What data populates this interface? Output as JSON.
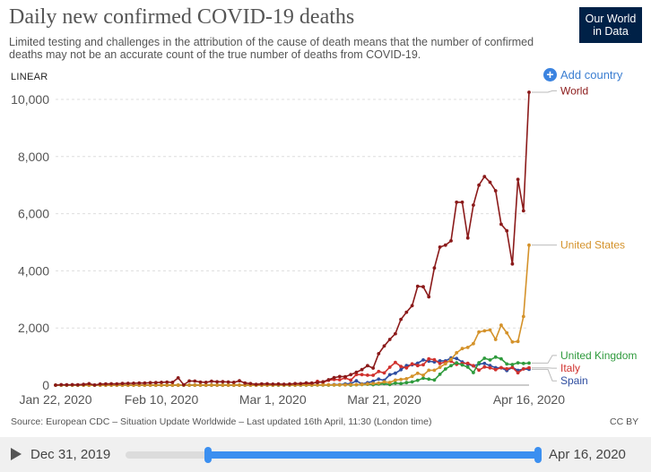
{
  "header": {
    "title": "Daily new confirmed COVID-19 deaths",
    "subtitle": "Limited testing and challenges in the attribution of the cause of death means that the number of confirmed deaths may not be an accurate count of the true number of deaths from COVID-19.",
    "logo_line1": "Our World",
    "logo_line2": "in Data",
    "scale": "LINEAR",
    "add_country": "Add country"
  },
  "footer": {
    "source": "Source: European CDC – Situation Update Worldwide – Last updated 16th April, 11:30 (London time)",
    "license": "CC BY"
  },
  "timeline": {
    "start_label": "Dec 31, 2019",
    "end_label": "Apr 16, 2020",
    "range_start_fraction": 0.2,
    "range_end_fraction": 1.0
  },
  "chart_data": {
    "type": "line",
    "title": "Daily new confirmed COVID-19 deaths",
    "x_start": "2020-01-22",
    "x_end": "2020-04-16",
    "x_ticks": [
      {
        "date": "2020-01-22",
        "label": "Jan 22, 2020"
      },
      {
        "date": "2020-02-10",
        "label": "Feb 10, 2020"
      },
      {
        "date": "2020-03-01",
        "label": "Mar 1, 2020"
      },
      {
        "date": "2020-03-21",
        "label": "Mar 21, 2020"
      },
      {
        "date": "2020-04-16",
        "label": "Apr 16, 2020"
      }
    ],
    "ylim": [
      0,
      10500
    ],
    "y_ticks": [
      {
        "value": 0,
        "label": "0"
      },
      {
        "value": 2000,
        "label": "2,000"
      },
      {
        "value": 4000,
        "label": "4,000"
      },
      {
        "value": 6000,
        "label": "6,000"
      },
      {
        "value": 8000,
        "label": "8,000"
      },
      {
        "value": 10000,
        "label": "10,000"
      }
    ],
    "grid": "horizontal-dashed",
    "legend": "line-end-labels",
    "dates": [
      "2020-01-22",
      "2020-01-23",
      "2020-01-24",
      "2020-01-25",
      "2020-01-26",
      "2020-01-27",
      "2020-01-28",
      "2020-01-29",
      "2020-01-30",
      "2020-01-31",
      "2020-02-01",
      "2020-02-02",
      "2020-02-03",
      "2020-02-04",
      "2020-02-05",
      "2020-02-06",
      "2020-02-07",
      "2020-02-08",
      "2020-02-09",
      "2020-02-10",
      "2020-02-11",
      "2020-02-12",
      "2020-02-13",
      "2020-02-14",
      "2020-02-15",
      "2020-02-16",
      "2020-02-17",
      "2020-02-18",
      "2020-02-19",
      "2020-02-20",
      "2020-02-21",
      "2020-02-22",
      "2020-02-23",
      "2020-02-24",
      "2020-02-25",
      "2020-02-26",
      "2020-02-27",
      "2020-02-28",
      "2020-02-29",
      "2020-03-01",
      "2020-03-02",
      "2020-03-03",
      "2020-03-04",
      "2020-03-05",
      "2020-03-06",
      "2020-03-07",
      "2020-03-08",
      "2020-03-09",
      "2020-03-10",
      "2020-03-11",
      "2020-03-12",
      "2020-03-13",
      "2020-03-14",
      "2020-03-15",
      "2020-03-16",
      "2020-03-17",
      "2020-03-18",
      "2020-03-19",
      "2020-03-20",
      "2020-03-21",
      "2020-03-22",
      "2020-03-23",
      "2020-03-24",
      "2020-03-25",
      "2020-03-26",
      "2020-03-27",
      "2020-03-28",
      "2020-03-29",
      "2020-03-30",
      "2020-03-31",
      "2020-04-01",
      "2020-04-02",
      "2020-04-03",
      "2020-04-04",
      "2020-04-05",
      "2020-04-06",
      "2020-04-07",
      "2020-04-08",
      "2020-04-09",
      "2020-04-10",
      "2020-04-11",
      "2020-04-12",
      "2020-04-13",
      "2020-04-14",
      "2020-04-15",
      "2020-04-16"
    ],
    "series": [
      {
        "name": "World",
        "color": "#8b1a1a",
        "values": [
          0,
          17,
          8,
          16,
          14,
          26,
          49,
          2,
          38,
          42,
          46,
          45,
          57,
          64,
          65,
          73,
          73,
          86,
          89,
          97,
          108,
          97,
          254,
          13,
          143,
          142,
          105,
          98,
          136,
          115,
          118,
          109,
          97,
          150,
          71,
          52,
          29,
          44,
          47,
          35,
          42,
          31,
          38,
          52,
          54,
          78,
          71,
          91,
          117,
          187,
          260,
          302,
          295,
          366,
          450,
          542,
          680,
          595,
          1100,
          1370,
          1600,
          1800,
          2300,
          2550,
          2780,
          3460,
          3440,
          3090,
          4100,
          4830,
          4900,
          5050,
          6400,
          6400,
          5150,
          6300,
          7000,
          7300,
          7100,
          6800,
          5630,
          5400,
          4240,
          7200,
          6100,
          10250
        ],
        "end_label_y": 10300
      },
      {
        "name": "United States",
        "color": "#d4922a",
        "values": [
          0,
          0,
          0,
          0,
          0,
          0,
          0,
          0,
          0,
          0,
          0,
          0,
          0,
          0,
          0,
          0,
          0,
          0,
          0,
          0,
          0,
          0,
          0,
          0,
          0,
          0,
          0,
          0,
          0,
          0,
          0,
          0,
          0,
          0,
          0,
          0,
          0,
          0,
          1,
          0,
          5,
          1,
          4,
          1,
          2,
          3,
          4,
          5,
          5,
          8,
          5,
          9,
          10,
          17,
          16,
          24,
          41,
          53,
          70,
          112,
          95,
          175,
          200,
          223,
          308,
          415,
          345,
          520,
          520,
          625,
          750,
          900,
          1130,
          1280,
          1320,
          1450,
          1860,
          1900,
          1930,
          1600,
          2100,
          1830,
          1510,
          1530,
          2400,
          4900
        ],
        "end_label_y": 4900
      },
      {
        "name": "United Kingdom",
        "color": "#2e9a3c",
        "values": [
          0,
          0,
          0,
          0,
          0,
          0,
          0,
          0,
          0,
          0,
          0,
          0,
          0,
          0,
          0,
          0,
          0,
          0,
          0,
          0,
          0,
          0,
          0,
          0,
          0,
          0,
          0,
          0,
          0,
          0,
          0,
          0,
          0,
          0,
          0,
          0,
          0,
          0,
          0,
          0,
          0,
          0,
          0,
          1,
          1,
          0,
          1,
          2,
          2,
          0,
          2,
          2,
          11,
          0,
          14,
          20,
          28,
          16,
          35,
          53,
          21,
          72,
          54,
          87,
          113,
          168,
          240,
          210,
          180,
          380,
          565,
          680,
          780,
          705,
          630,
          440,
          785,
          940,
          880,
          980,
          920,
          740,
          720,
          780,
          760,
          770
        ],
        "end_label_y": 1040
      },
      {
        "name": "Italy",
        "color": "#d0312d",
        "values": [
          0,
          0,
          0,
          0,
          0,
          0,
          0,
          0,
          0,
          0,
          0,
          0,
          0,
          0,
          0,
          0,
          0,
          0,
          0,
          0,
          0,
          0,
          0,
          0,
          0,
          0,
          0,
          0,
          0,
          0,
          0,
          0,
          0,
          0,
          0,
          0,
          0,
          2,
          3,
          6,
          5,
          18,
          27,
          28,
          41,
          49,
          36,
          133,
          97,
          168,
          196,
          189,
          252,
          174,
          370,
          368,
          349,
          345,
          475,
          427,
          627,
          793,
          651,
          601,
          743,
          683,
          712,
          919,
          889,
          756,
          812,
          837,
          727,
          760,
          766,
          681,
          525,
          636,
          604,
          542,
          610,
          570,
          619,
          431,
          566,
          604
        ],
        "end_label_y": 590
      },
      {
        "name": "Spain",
        "color": "#2f4ea0",
        "values": [
          0,
          0,
          0,
          0,
          0,
          0,
          0,
          0,
          0,
          0,
          0,
          0,
          0,
          0,
          0,
          0,
          0,
          0,
          0,
          0,
          0,
          0,
          0,
          0,
          0,
          0,
          0,
          0,
          0,
          0,
          0,
          0,
          0,
          0,
          0,
          0,
          0,
          0,
          0,
          0,
          0,
          0,
          0,
          0,
          1,
          2,
          3,
          5,
          10,
          7,
          18,
          19,
          40,
          52,
          150,
          41,
          85,
          139,
          209,
          168,
          365,
          418,
          540,
          685,
          711,
          768,
          881,
          838,
          812,
          850,
          850,
          950,
          932,
          809,
          730,
          670,
          740,
          757,
          683,
          611,
          605,
          510,
          619,
          517,
          567,
          551
        ],
        "end_label_y": 150
      }
    ]
  }
}
